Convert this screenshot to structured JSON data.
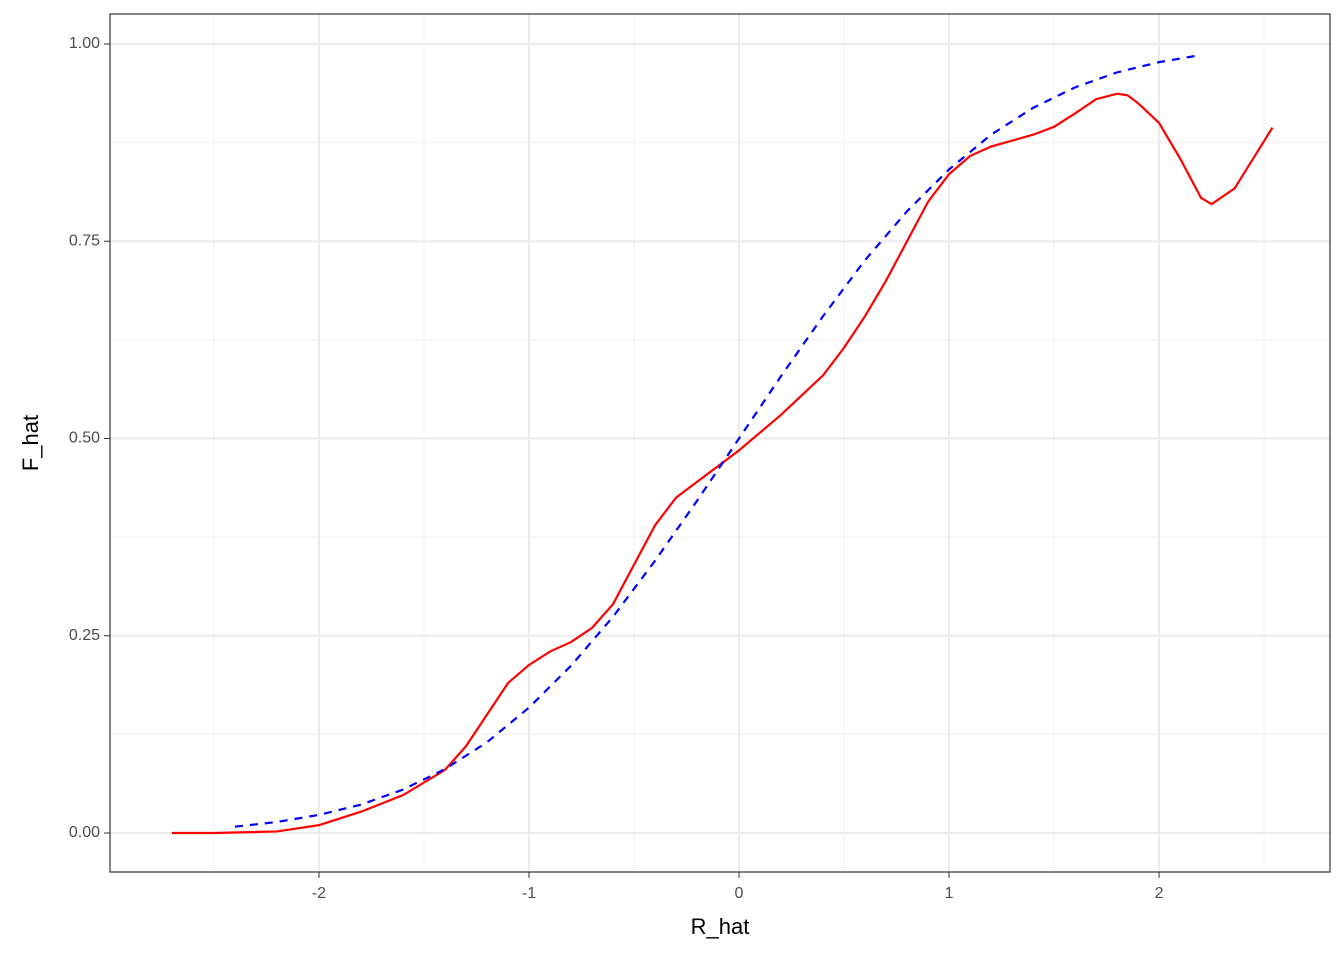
{
  "chart_data": {
    "type": "line",
    "x_label": "R_hat",
    "y_label": "F_hat",
    "xlim": [
      -2.995,
      2.814
    ],
    "ylim": [
      -0.0494,
      1.038
    ],
    "xticks": [
      -2,
      -1,
      0,
      1,
      2
    ],
    "yticks": [
      {
        "value": 0,
        "label": "0.00"
      },
      {
        "value": 0.25,
        "label": "0.25"
      },
      {
        "value": 0.5,
        "label": "0.50"
      },
      {
        "value": 0.75,
        "label": "0.75"
      },
      {
        "value": 1,
        "label": "1.00"
      }
    ],
    "grid": true,
    "minor_grid": true,
    "series": [
      {
        "color": "#ff0000",
        "dash": "solid",
        "x": [
          -2.7,
          -2.5,
          -2.2,
          -2.0,
          -1.8,
          -1.6,
          -1.4,
          -1.3,
          -1.2,
          -1.1,
          -1.0,
          -0.9,
          -0.8,
          -0.7,
          -0.6,
          -0.5,
          -0.4,
          -0.3,
          -0.2,
          -0.1,
          0,
          0.2,
          0.4,
          0.5,
          0.6,
          0.7,
          0.8,
          0.9,
          1.0,
          1.1,
          1.2,
          1.4,
          1.5,
          1.6,
          1.7,
          1.8,
          1.85,
          1.9,
          2.0,
          2.1,
          2.2,
          2.25,
          2.36,
          2.54
        ],
        "values": [
          0,
          0,
          0.002,
          0.01,
          0.027,
          0.048,
          0.08,
          0.11,
          0.15,
          0.19,
          0.213,
          0.23,
          0.242,
          0.26,
          0.29,
          0.34,
          0.39,
          0.425,
          0.445,
          0.465,
          0.485,
          0.53,
          0.58,
          0.615,
          0.655,
          0.7,
          0.75,
          0.8,
          0.835,
          0.858,
          0.87,
          0.885,
          0.895,
          0.912,
          0.93,
          0.937,
          0.935,
          0.925,
          0.9,
          0.855,
          0.805,
          0.797,
          0.817,
          0.894
        ]
      },
      {
        "color": "#0000ff",
        "dash": "dashed",
        "x": [
          -2.4,
          -2.2,
          -2.0,
          -1.8,
          -1.6,
          -1.4,
          -1.2,
          -1.0,
          -0.8,
          -0.6,
          -0.4,
          -0.2,
          0,
          0.2,
          0.4,
          0.6,
          0.8,
          1.0,
          1.2,
          1.4,
          1.6,
          1.8,
          2.0,
          2.2
        ],
        "values": [
          0.008,
          0.014,
          0.023,
          0.036,
          0.055,
          0.081,
          0.115,
          0.159,
          0.212,
          0.274,
          0.345,
          0.421,
          0.5,
          0.579,
          0.655,
          0.726,
          0.788,
          0.841,
          0.885,
          0.919,
          0.945,
          0.964,
          0.977,
          0.986
        ]
      }
    ]
  }
}
